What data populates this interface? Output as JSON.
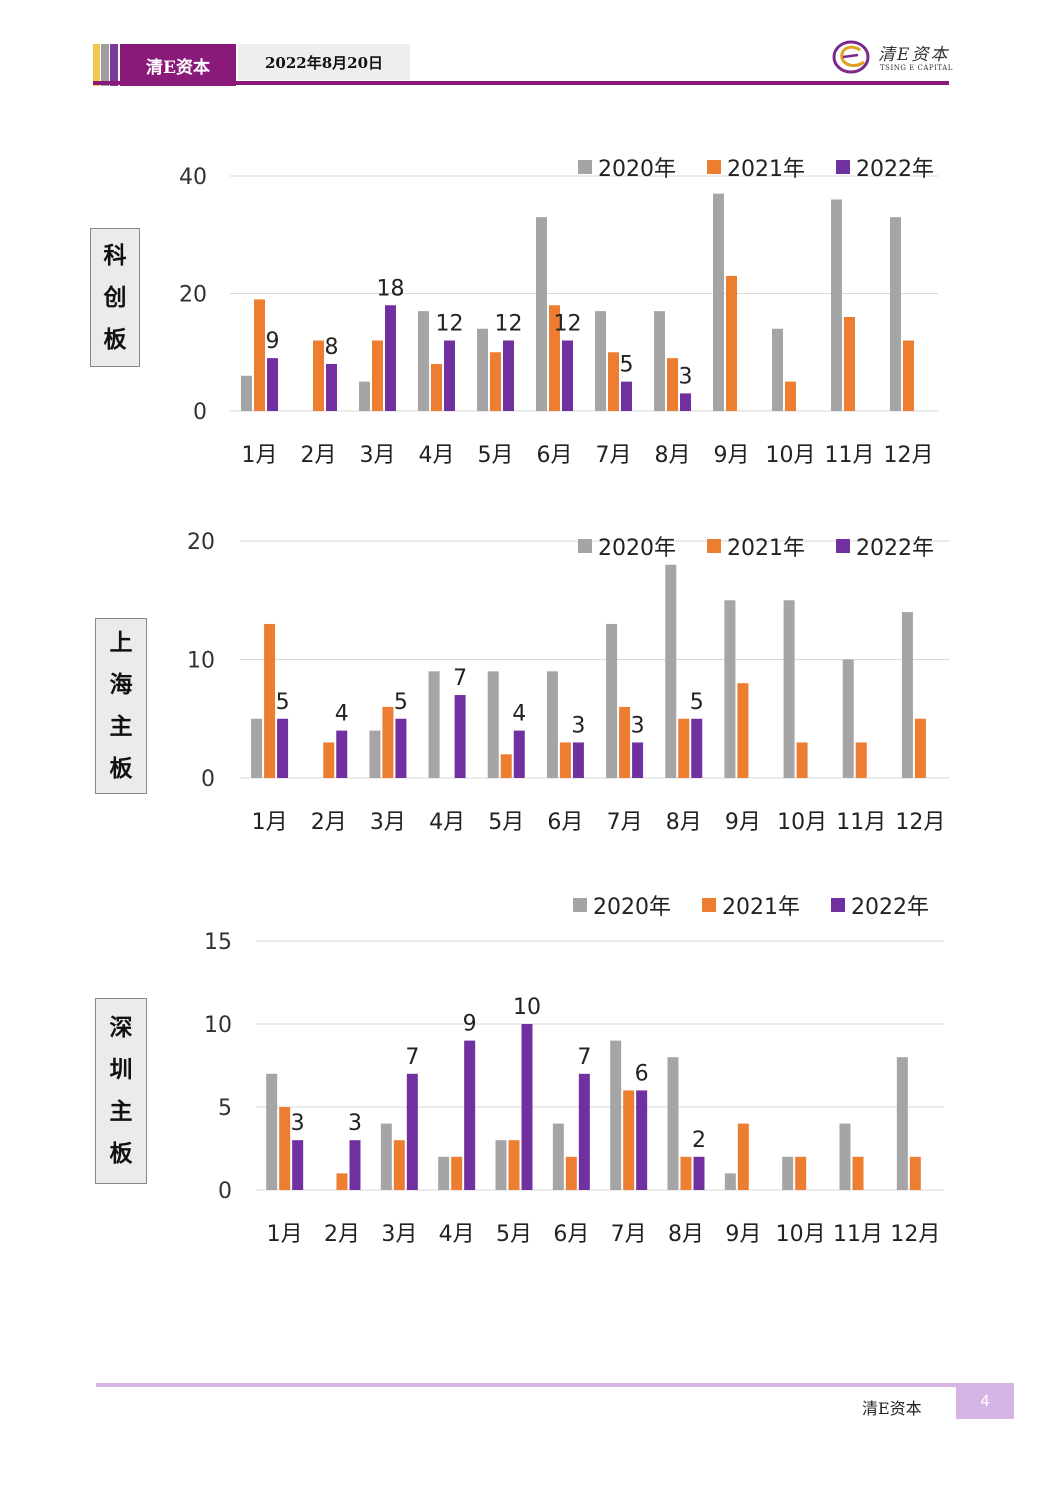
{
  "header": {
    "brand": "清E资本",
    "date": "2022年8月20日",
    "logo_cn": "清E资本",
    "logo_en": "TSING E CAPITAL"
  },
  "footer": {
    "brand": "清E资本",
    "page": "4"
  },
  "colors": {
    "s2020": "#a5a5a5",
    "s2021": "#ed7d31",
    "s2022": "#7030a0",
    "brand": "#8a1a7a"
  },
  "chart_data": [
    {
      "type": "bar",
      "side_label": [
        "科",
        "创",
        "板"
      ],
      "categories": [
        "1月",
        "2月",
        "3月",
        "4月",
        "5月",
        "6月",
        "7月",
        "8月",
        "9月",
        "10月",
        "11月",
        "12月"
      ],
      "series": [
        {
          "name": "2020年",
          "values": [
            6,
            0,
            5,
            17,
            14,
            33,
            17,
            17,
            37,
            14,
            36,
            33
          ]
        },
        {
          "name": "2021年",
          "values": [
            19,
            12,
            12,
            8,
            10,
            18,
            10,
            9,
            23,
            5,
            16,
            12
          ]
        },
        {
          "name": "2022年",
          "values": [
            9,
            8,
            18,
            12,
            12,
            12,
            5,
            3,
            null,
            null,
            null,
            null
          ]
        }
      ],
      "data_labels": [
        "9",
        "8",
        "18",
        "12",
        "12",
        "12",
        "5",
        "3"
      ],
      "ylim": [
        0,
        40
      ],
      "yticks": [
        "0",
        "20",
        "40"
      ],
      "grid": true,
      "legend": "top-right"
    },
    {
      "type": "bar",
      "side_label": [
        "上",
        "海",
        "主",
        "板"
      ],
      "categories": [
        "1月",
        "2月",
        "3月",
        "4月",
        "5月",
        "6月",
        "7月",
        "8月",
        "9月",
        "10月",
        "11月",
        "12月"
      ],
      "series": [
        {
          "name": "2020年",
          "values": [
            5,
            0,
            4,
            9,
            9,
            9,
            13,
            18,
            15,
            15,
            10,
            14
          ]
        },
        {
          "name": "2021年",
          "values": [
            13,
            3,
            6,
            0,
            2,
            3,
            6,
            5,
            8,
            3,
            3,
            5
          ]
        },
        {
          "name": "2022年",
          "values": [
            5,
            4,
            5,
            7,
            4,
            3,
            3,
            5,
            null,
            null,
            null,
            null
          ]
        }
      ],
      "data_labels": [
        "5",
        "4",
        "5",
        "7",
        "4",
        "3",
        "3",
        "5"
      ],
      "ylim": [
        0,
        20
      ],
      "yticks": [
        "0",
        "10",
        "20"
      ],
      "grid": true,
      "legend": "top-right"
    },
    {
      "type": "bar",
      "side_label": [
        "深",
        "圳",
        "主",
        "板"
      ],
      "categories": [
        "1月",
        "2月",
        "3月",
        "4月",
        "5月",
        "6月",
        "7月",
        "8月",
        "9月",
        "10月",
        "11月",
        "12月"
      ],
      "series": [
        {
          "name": "2020年",
          "values": [
            7,
            0,
            4,
            2,
            3,
            4,
            9,
            8,
            1,
            2,
            4,
            8
          ]
        },
        {
          "name": "2021年",
          "values": [
            5,
            1,
            3,
            2,
            3,
            2,
            6,
            2,
            4,
            2,
            2,
            2
          ]
        },
        {
          "name": "2022年",
          "values": [
            3,
            3,
            7,
            9,
            10,
            7,
            6,
            2,
            null,
            null,
            null,
            null
          ]
        }
      ],
      "data_labels": [
        "3",
        "3",
        "7",
        "9",
        "10",
        "7",
        "6",
        "2"
      ],
      "ylim": [
        0,
        15
      ],
      "yticks": [
        "0",
        "5",
        "10",
        "15"
      ],
      "grid": true,
      "legend": "top-right"
    }
  ]
}
